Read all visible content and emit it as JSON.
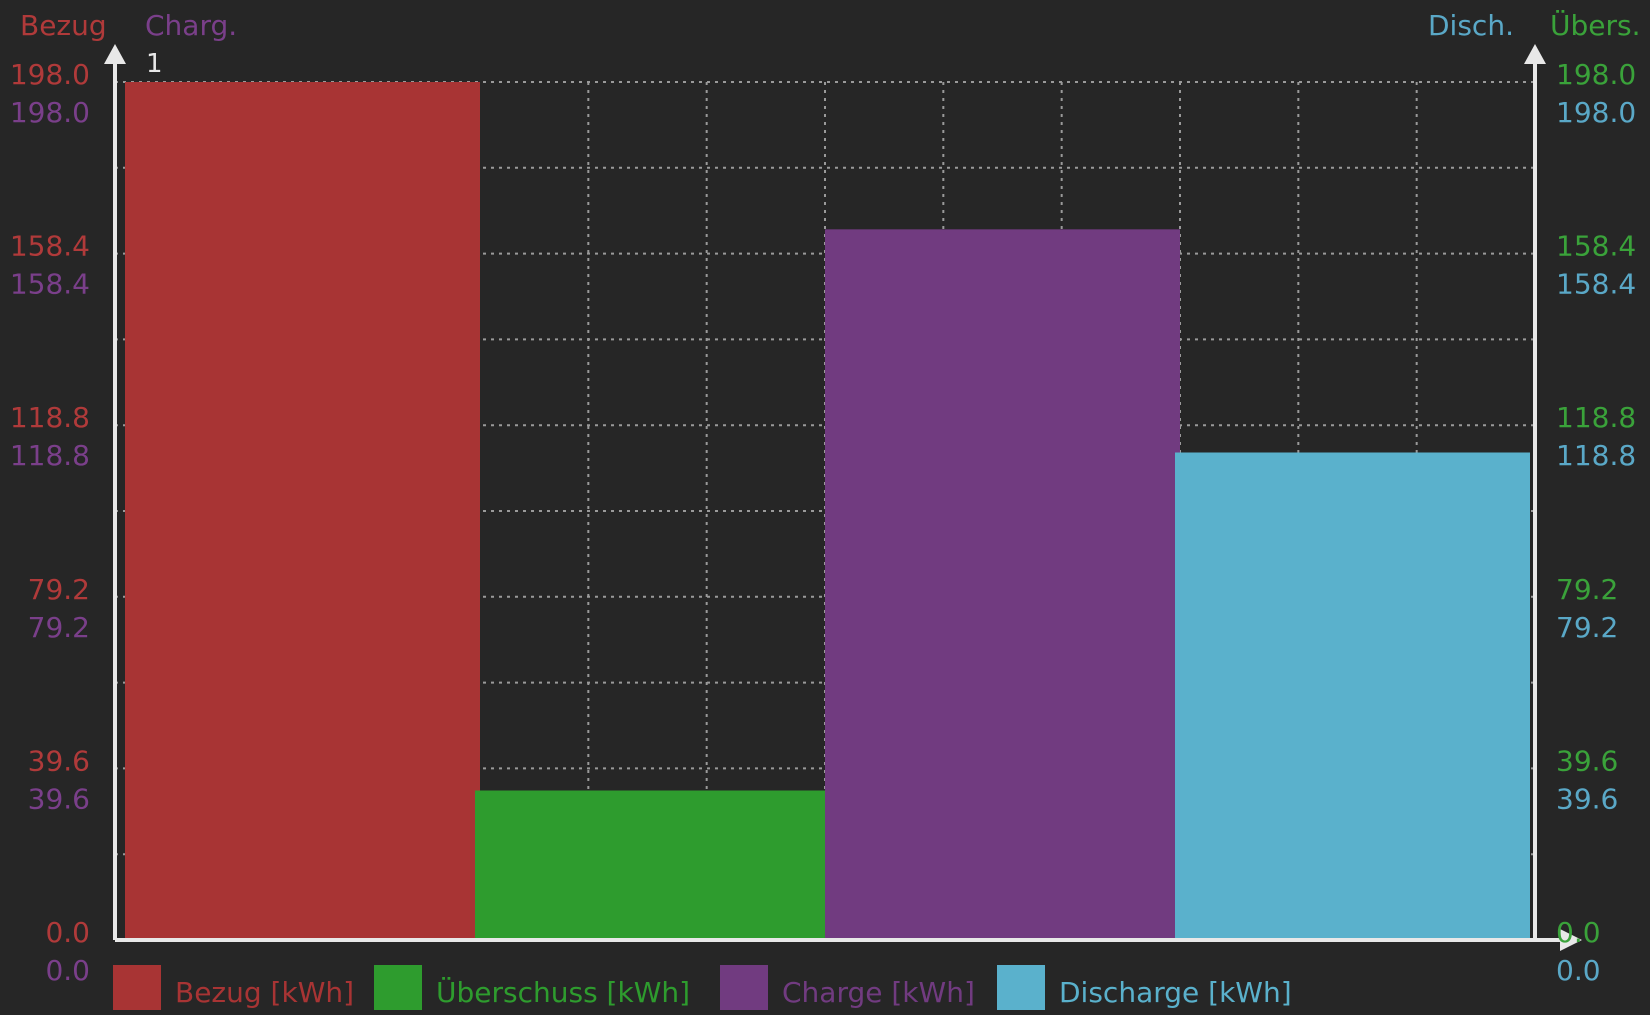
{
  "chart_data": {
    "type": "bar",
    "x_tick_label": "1",
    "axis_titles": {
      "left_outer": "Bezug",
      "left_inner": "Charg.",
      "right_inner": "Disch.",
      "right_outer": "Übers."
    },
    "ylim": [
      0,
      198
    ],
    "y_ticks": [
      "0.0",
      "39.6",
      "79.2",
      "118.8",
      "158.4",
      "198.0"
    ],
    "series": [
      {
        "name": "Bezug [kWh]",
        "value": 198.0,
        "color": "#a83434"
      },
      {
        "name": "Überschuss [kWh]",
        "value": 34.5,
        "color": "#2e9c2e"
      },
      {
        "name": "Charge [kWh]",
        "value": 164.0,
        "color": "#713b80"
      },
      {
        "name": "Discharge [kWh]",
        "value": 112.5,
        "color": "#5ab1cc"
      }
    ],
    "colors": {
      "bezug_axis": "#b03a3a",
      "charge_axis": "#7a3f8a",
      "discharge_axis": "#5aa8c7",
      "ueberschuss_axis": "#3aa23a",
      "grid": "#9a9a9a",
      "axis": "#e8e8e8",
      "background": "#262626"
    },
    "grid": true,
    "legend_position": "bottom"
  }
}
